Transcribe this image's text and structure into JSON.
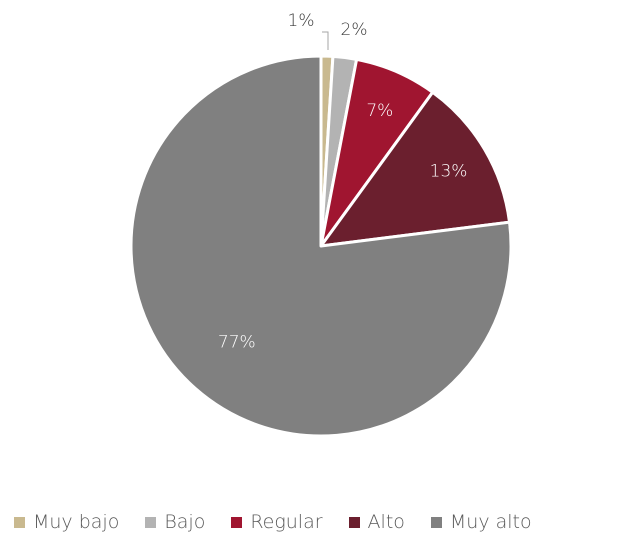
{
  "chart_data": {
    "type": "pie",
    "title": "",
    "categories": [
      "Muy bajo",
      "Bajo",
      "Regular",
      "Alto",
      "Muy alto"
    ],
    "values": [
      1,
      2,
      7,
      13,
      77
    ],
    "labels": [
      "1%",
      "2%",
      "7%",
      "13%",
      "77%"
    ],
    "colors": [
      "#c9b98f",
      "#b3b3b3",
      "#a01530",
      "#6b1f2e",
      "#808080"
    ],
    "label_colors": [
      "#3a3a3a",
      "#3a3a3a",
      "#ffffff",
      "#ffffff",
      "#ffffff"
    ],
    "legend_position": "bottom",
    "start_angle": "12 o'clock, clockwise"
  },
  "legend": {
    "items": [
      {
        "label": "Muy bajo",
        "color": "#c9b98f"
      },
      {
        "label": "Bajo",
        "color": "#b3b3b3"
      },
      {
        "label": "Regular",
        "color": "#a01530"
      },
      {
        "label": "Alto",
        "color": "#6b1f2e"
      },
      {
        "label": "Muy alto",
        "color": "#808080"
      }
    ]
  }
}
